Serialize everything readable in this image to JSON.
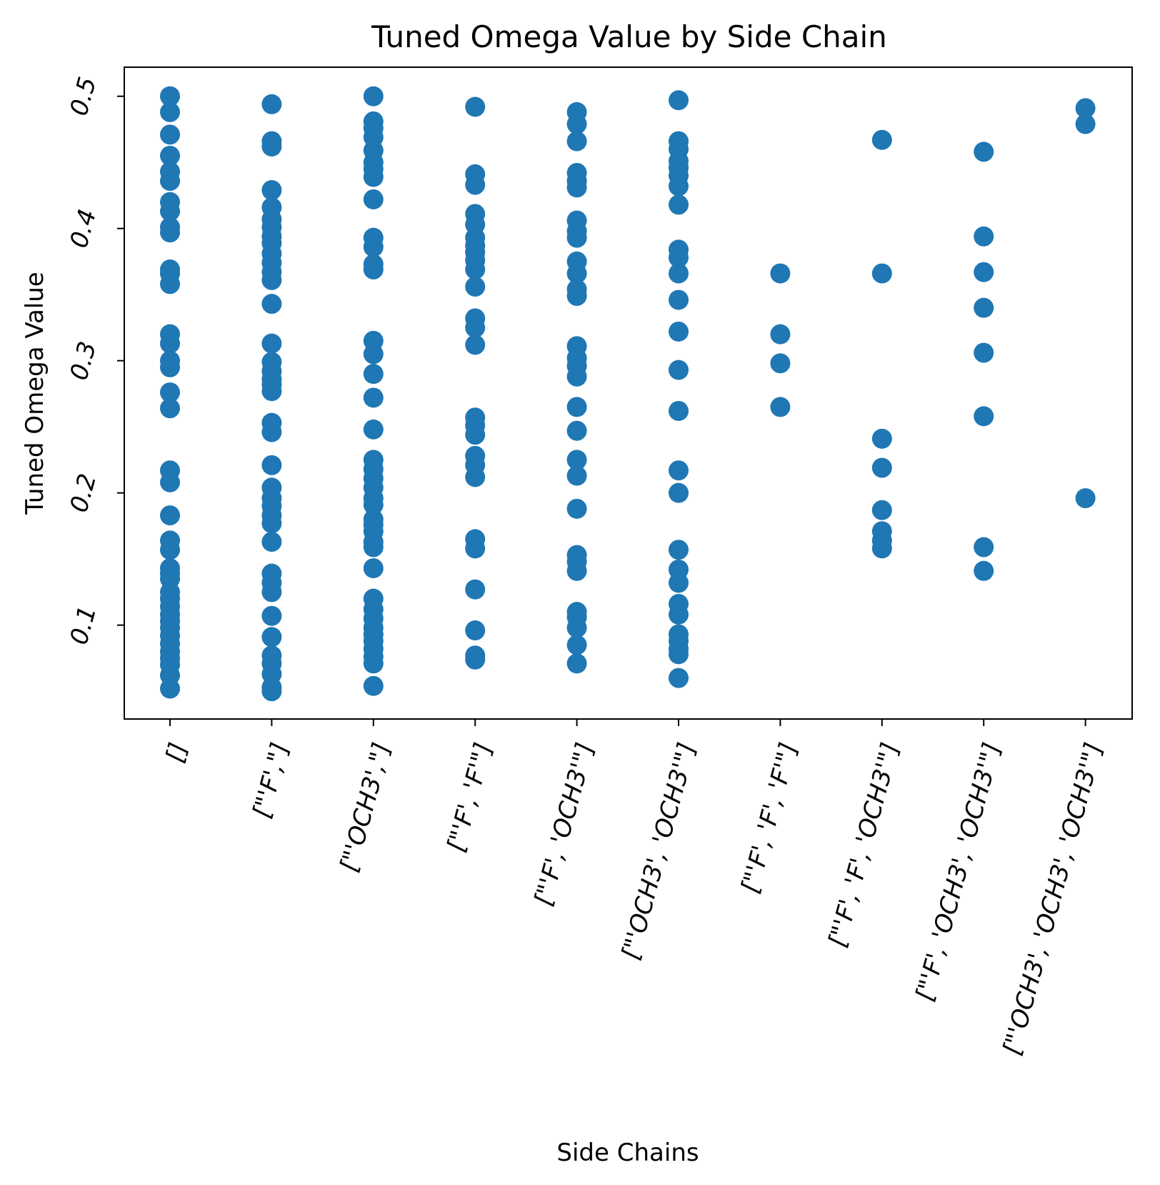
{
  "chart_data": {
    "type": "scatter",
    "title": "Tuned Omega Value by Side Chain",
    "xlabel": "Side Chains",
    "ylabel": "Tuned Omega Value",
    "ylim": [
      0.029,
      0.522
    ],
    "yticks": [
      "0.1",
      "0.2",
      "0.3",
      "0.4",
      "0.5"
    ],
    "ytick_values": [
      0.1,
      0.2,
      0.3,
      0.4,
      0.5
    ],
    "grid": false,
    "legend": "none",
    "marker_color": "#1f77b4",
    "categories": [
      "[]",
      "[\"'F',\"]",
      "[\"'OCH3',\"]",
      "[\"'F', 'F'\"]",
      "[\"'F', 'OCH3'\"]",
      "[\"'OCH3', 'OCH3'\"]",
      "[\"'F', 'F', 'F'\"]",
      "[\"'F', 'F', 'OCH3'\"]",
      "[\"'F', 'OCH3', 'OCH3'\"]",
      "[\"'OCH3', 'OCH3', 'OCH3'\"]"
    ],
    "values": [
      [
        0.5,
        0.488,
        0.471,
        0.455,
        0.443,
        0.436,
        0.42,
        0.413,
        0.401,
        0.397,
        0.369,
        0.366,
        0.358,
        0.32,
        0.313,
        0.3,
        0.295,
        0.276,
        0.264,
        0.217,
        0.208,
        0.183,
        0.164,
        0.157,
        0.143,
        0.139,
        0.135,
        0.125,
        0.12,
        0.114,
        0.108,
        0.103,
        0.098,
        0.092,
        0.086,
        0.08,
        0.075,
        0.07,
        0.062,
        0.052
      ],
      [
        0.494,
        0.466,
        0.462,
        0.429,
        0.416,
        0.407,
        0.401,
        0.394,
        0.389,
        0.381,
        0.374,
        0.367,
        0.361,
        0.343,
        0.313,
        0.299,
        0.292,
        0.286,
        0.282,
        0.277,
        0.253,
        0.246,
        0.221,
        0.204,
        0.196,
        0.19,
        0.183,
        0.177,
        0.163,
        0.139,
        0.132,
        0.125,
        0.107,
        0.091,
        0.077,
        0.071,
        0.063,
        0.053,
        0.05
      ],
      [
        0.5,
        0.481,
        0.476,
        0.469,
        0.459,
        0.45,
        0.445,
        0.439,
        0.422,
        0.393,
        0.386,
        0.373,
        0.369,
        0.315,
        0.305,
        0.29,
        0.272,
        0.248,
        0.225,
        0.218,
        0.211,
        0.204,
        0.196,
        0.191,
        0.18,
        0.176,
        0.171,
        0.163,
        0.159,
        0.143,
        0.12,
        0.112,
        0.105,
        0.098,
        0.093,
        0.088,
        0.082,
        0.076,
        0.071,
        0.054
      ],
      [
        0.492,
        0.441,
        0.433,
        0.411,
        0.403,
        0.393,
        0.387,
        0.382,
        0.376,
        0.369,
        0.356,
        0.332,
        0.325,
        0.312,
        0.257,
        0.251,
        0.244,
        0.228,
        0.221,
        0.212,
        0.165,
        0.158,
        0.127,
        0.096,
        0.077,
        0.074
      ],
      [
        0.488,
        0.479,
        0.466,
        0.442,
        0.436,
        0.431,
        0.406,
        0.398,
        0.393,
        0.375,
        0.366,
        0.354,
        0.349,
        0.311,
        0.302,
        0.296,
        0.288,
        0.265,
        0.247,
        0.225,
        0.213,
        0.188,
        0.153,
        0.148,
        0.141,
        0.11,
        0.106,
        0.098,
        0.085,
        0.071
      ],
      [
        0.497,
        0.466,
        0.46,
        0.451,
        0.446,
        0.44,
        0.432,
        0.418,
        0.384,
        0.378,
        0.366,
        0.346,
        0.322,
        0.293,
        0.262,
        0.217,
        0.2,
        0.157,
        0.142,
        0.132,
        0.116,
        0.108,
        0.093,
        0.088,
        0.082,
        0.078,
        0.06
      ],
      [
        0.366,
        0.32,
        0.298,
        0.265
      ],
      [
        0.467,
        0.366,
        0.241,
        0.219,
        0.187,
        0.171,
        0.164,
        0.158
      ],
      [
        0.458,
        0.394,
        0.367,
        0.34,
        0.306,
        0.258,
        0.159,
        0.141
      ],
      [
        0.491,
        0.479,
        0.196
      ]
    ]
  }
}
